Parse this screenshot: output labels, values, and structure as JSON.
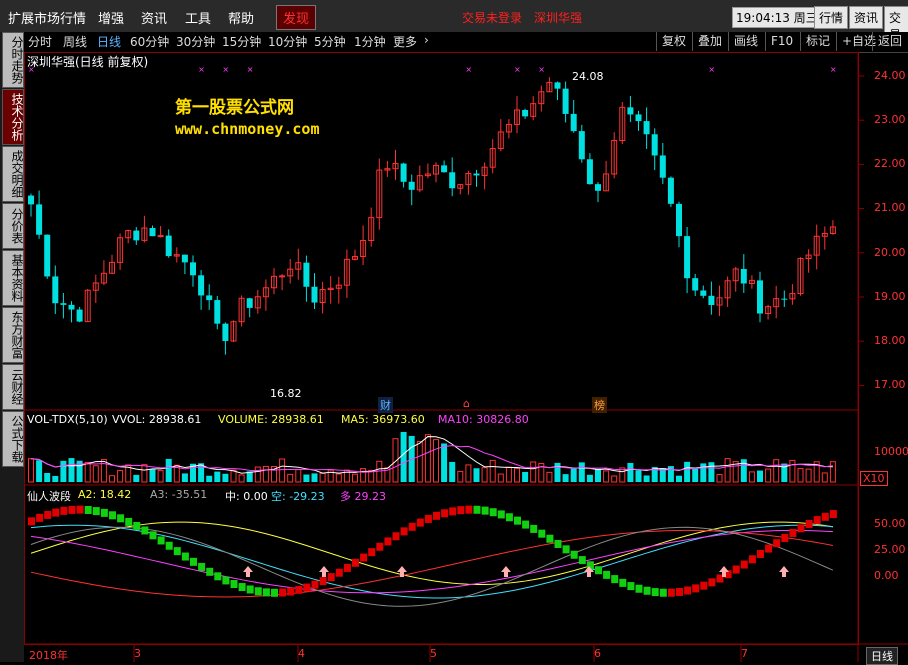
{
  "menu": {
    "items": [
      "扩展市场行情",
      "增强",
      "资讯",
      "工具",
      "帮助"
    ],
    "active": "发现",
    "status_login": "交易未登录",
    "status_stock": "深圳华强",
    "clock": "19:04:13 周三",
    "right_buttons": [
      "行情",
      "资讯",
      "交易"
    ]
  },
  "sidebar": {
    "tabs": [
      "分时走势",
      "技术分析",
      "成交明细",
      "分价表",
      "基本资料",
      "东方财富",
      "云财经",
      "公式下载"
    ]
  },
  "toolbar": {
    "periods": [
      "分时",
      "周线",
      "日线",
      "60分钟",
      "30分钟",
      "15分钟",
      "10分钟",
      "5分钟",
      "1分钟",
      "更多"
    ],
    "selected": "日线",
    "right": [
      "复权",
      "叠加",
      "画线",
      "F10",
      "标记",
      "+自选",
      "返回"
    ]
  },
  "main": {
    "title": "深圳华强(日线 前复权)",
    "watermark_cn": "第一股票公式网",
    "watermark_url": "www.chnmoney.com",
    "high_label": "24.08",
    "low_label": "16.82",
    "markers": [
      "财",
      "⌂",
      "榜"
    ],
    "price_axis": [
      "24.00",
      "23.00",
      "22.00",
      "21.00",
      "20.00",
      "19.00",
      "18.00",
      "17.00"
    ]
  },
  "volume": {
    "name": "VOL-TDX(5,10)",
    "vvol": "VVOL: 28938.61",
    "volume": "VOLUME: 28938.61",
    "ma5": "MA5: 36973.60",
    "ma10": "MA10: 30826.80",
    "axis": "10000",
    "unit": "X10"
  },
  "indicator": {
    "name": "仙人波段",
    "a2": "A2: 18.42",
    "a3": "A3: -35.51",
    "zhong": "中: 0.00",
    "kong": "空: -29.23",
    "duo": "多  29.23",
    "axis": [
      "50.00",
      "25.00",
      "0.00"
    ]
  },
  "date_axis": [
    "2018年",
    "3",
    "4",
    "5",
    "6",
    "7"
  ],
  "bottom_tab": "日线",
  "colors": {
    "up": "#ff3232",
    "down": "#00e0e0",
    "ma5": "#ffffff",
    "ma10": "#ff40ff",
    "bg": "#000000"
  }
}
